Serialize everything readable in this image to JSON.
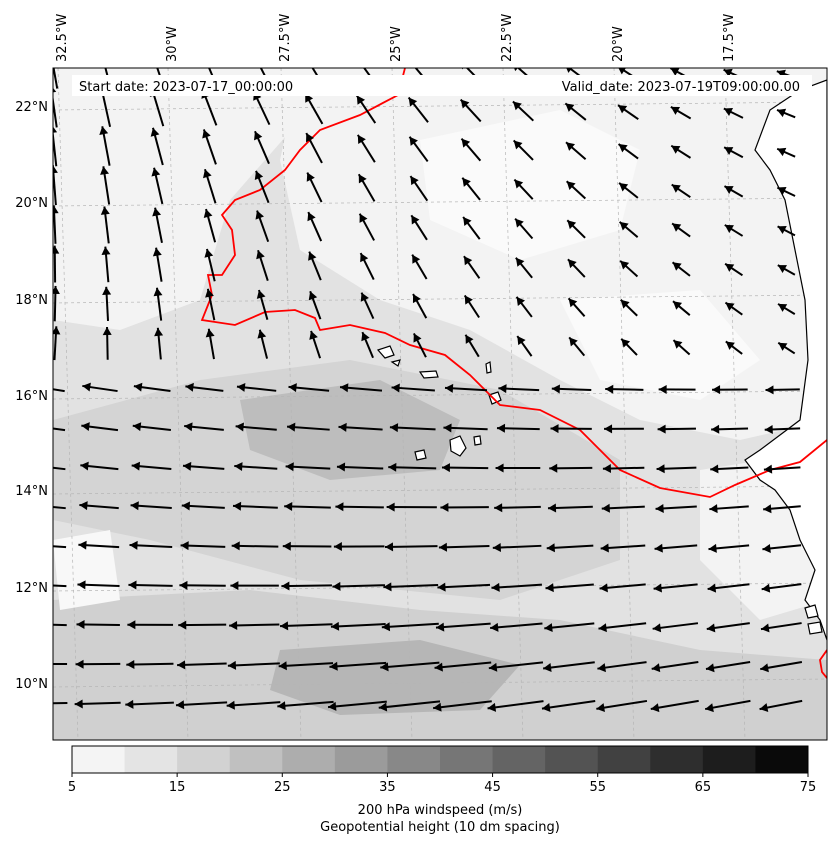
{
  "header": {
    "start_date": "Start date: 2023-07-17_00:00:00",
    "valid_date": "Valid_date: 2023-07-19T09:00:00.00"
  },
  "axes": {
    "lon_labels": [
      "32.5°W",
      "30°W",
      "27.5°W",
      "25°W",
      "22.5°W",
      "20°W",
      "17.5°W"
    ],
    "lat_labels": [
      "22°N",
      "20°N",
      "18°N",
      "16°N",
      "14°N",
      "12°N",
      "10°N"
    ]
  },
  "colorbar": {
    "ticks": [
      "5",
      "15",
      "25",
      "35",
      "45",
      "55",
      "65",
      "75"
    ],
    "label": "200 hPa windspeed (m/s)",
    "contour_label": "Geopotential height (10 dm spacing)",
    "contour_color": "#ff0000",
    "bins": [
      "#f4f4f4",
      "#e4e4e4",
      "#d2d2d2",
      "#c0c0c0",
      "#adadad",
      "#9b9b9b",
      "#888888",
      "#767676",
      "#646464",
      "#535353",
      "#414141",
      "#2e2e2e",
      "#1d1d1d",
      "#0a0a0a"
    ]
  },
  "map": {
    "background": "#ececec",
    "arrow_color": "#000000",
    "coast_color": "#000000"
  }
}
